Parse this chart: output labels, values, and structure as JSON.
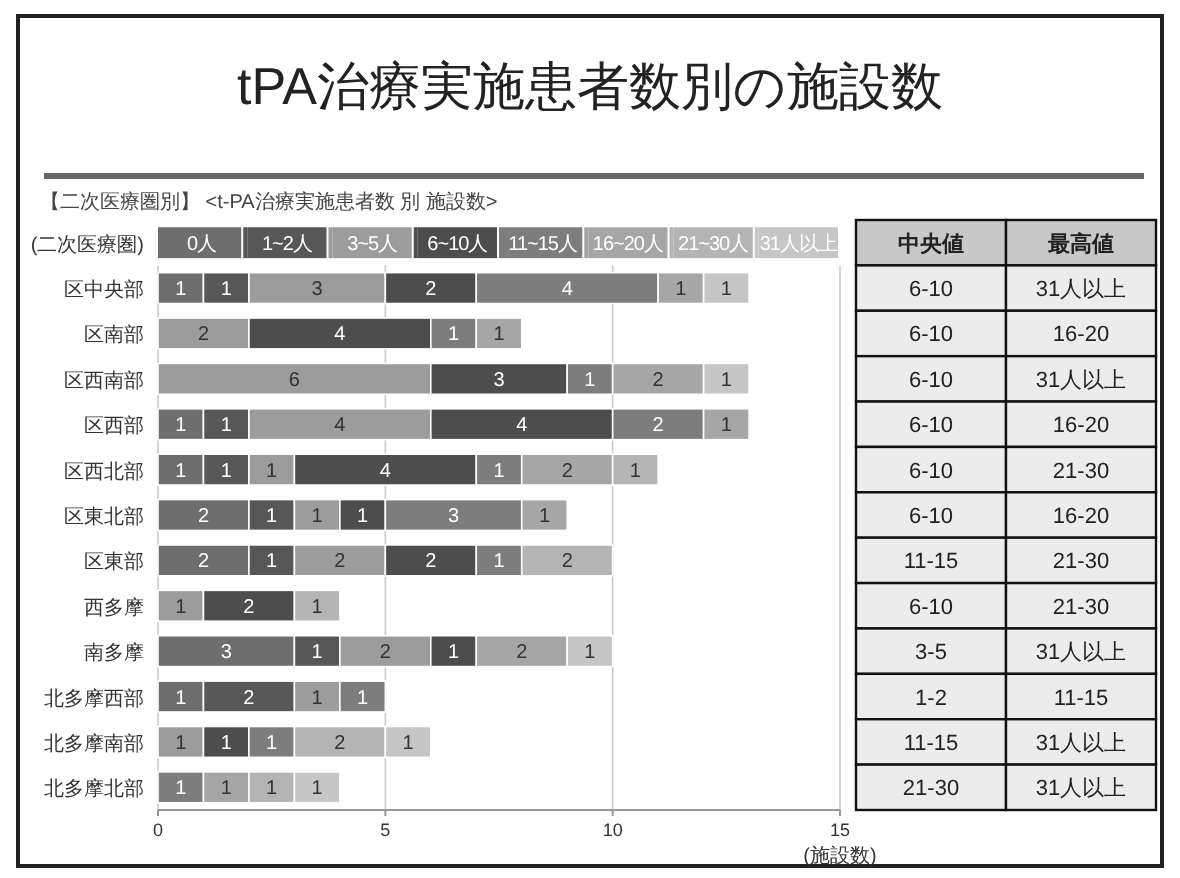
{
  "chart_data": [
    {
      "type": "bar",
      "orientation": "horizontal",
      "stacked": true,
      "title": "tPA治療実施患者数別の施設数",
      "subtitle": "【二次医療圏別】 <t-PA治療実施患者数 別 施設数>",
      "ylabel": "(二次医療圏)",
      "xlabel": "(施設数)",
      "categories": [
        "区中央部",
        "区南部",
        "区西南部",
        "区西部",
        "区西北部",
        "区東北部",
        "区東部",
        "西多摩",
        "南多摩",
        "北多摩西部",
        "北多摩南部",
        "北多摩北部"
      ],
      "series": [
        {
          "name": "0人",
          "color": "#6e6e6e",
          "values": [
            1,
            null,
            null,
            1,
            1,
            2,
            2,
            null,
            3,
            1,
            null,
            null
          ]
        },
        {
          "name": "1~2人",
          "color": "#575757",
          "values": [
            1,
            null,
            null,
            1,
            1,
            1,
            1,
            null,
            1,
            2,
            null,
            null
          ]
        },
        {
          "name": "3~5人",
          "color": "#9c9c9c",
          "values": [
            3,
            2,
            6,
            4,
            1,
            1,
            2,
            1,
            2,
            1,
            1,
            null
          ]
        },
        {
          "name": "6~10人",
          "color": "#4d4d4d",
          "values": [
            2,
            4,
            3,
            4,
            4,
            1,
            2,
            2,
            1,
            null,
            1,
            null
          ]
        },
        {
          "name": "11~15人",
          "color": "#7d7d7d",
          "values": [
            4,
            1,
            1,
            2,
            1,
            3,
            1,
            null,
            null,
            1,
            1,
            1
          ]
        },
        {
          "name": "16~20人",
          "color": "#a6a6a6",
          "values": [
            1,
            1,
            2,
            1,
            2,
            1,
            null,
            null,
            2,
            null,
            null,
            1
          ]
        },
        {
          "name": "21~30人",
          "color": "#b4b4b4",
          "values": [
            null,
            null,
            null,
            null,
            1,
            null,
            2,
            1,
            null,
            null,
            2,
            1
          ]
        },
        {
          "name": "31人以上",
          "color": "#c6c6c6",
          "values": [
            1,
            null,
            1,
            null,
            null,
            null,
            null,
            null,
            1,
            null,
            1,
            1
          ]
        }
      ],
      "xlim": [
        0,
        15
      ],
      "xticks": [
        0,
        5,
        10,
        15
      ],
      "grid": "x",
      "legend": "top",
      "data_labels": true
    },
    {
      "type": "other",
      "categories": [
        "中央値",
        "最高値"
      ],
      "cell_labels": [
        [
          "6-10",
          "31人以上"
        ],
        [
          "6-10",
          "16-20"
        ],
        [
          "6-10",
          "31人以上"
        ],
        [
          "6-10",
          "16-20"
        ],
        [
          "6-10",
          "21-30"
        ],
        [
          "6-10",
          "16-20"
        ],
        [
          "11-15",
          "21-30"
        ],
        [
          "6-10",
          "21-30"
        ],
        [
          "3-5",
          "31人以上"
        ],
        [
          "1-2",
          "11-15"
        ],
        [
          "11-15",
          "31人以上"
        ],
        [
          "21-30",
          "31人以上"
        ]
      ]
    }
  ]
}
